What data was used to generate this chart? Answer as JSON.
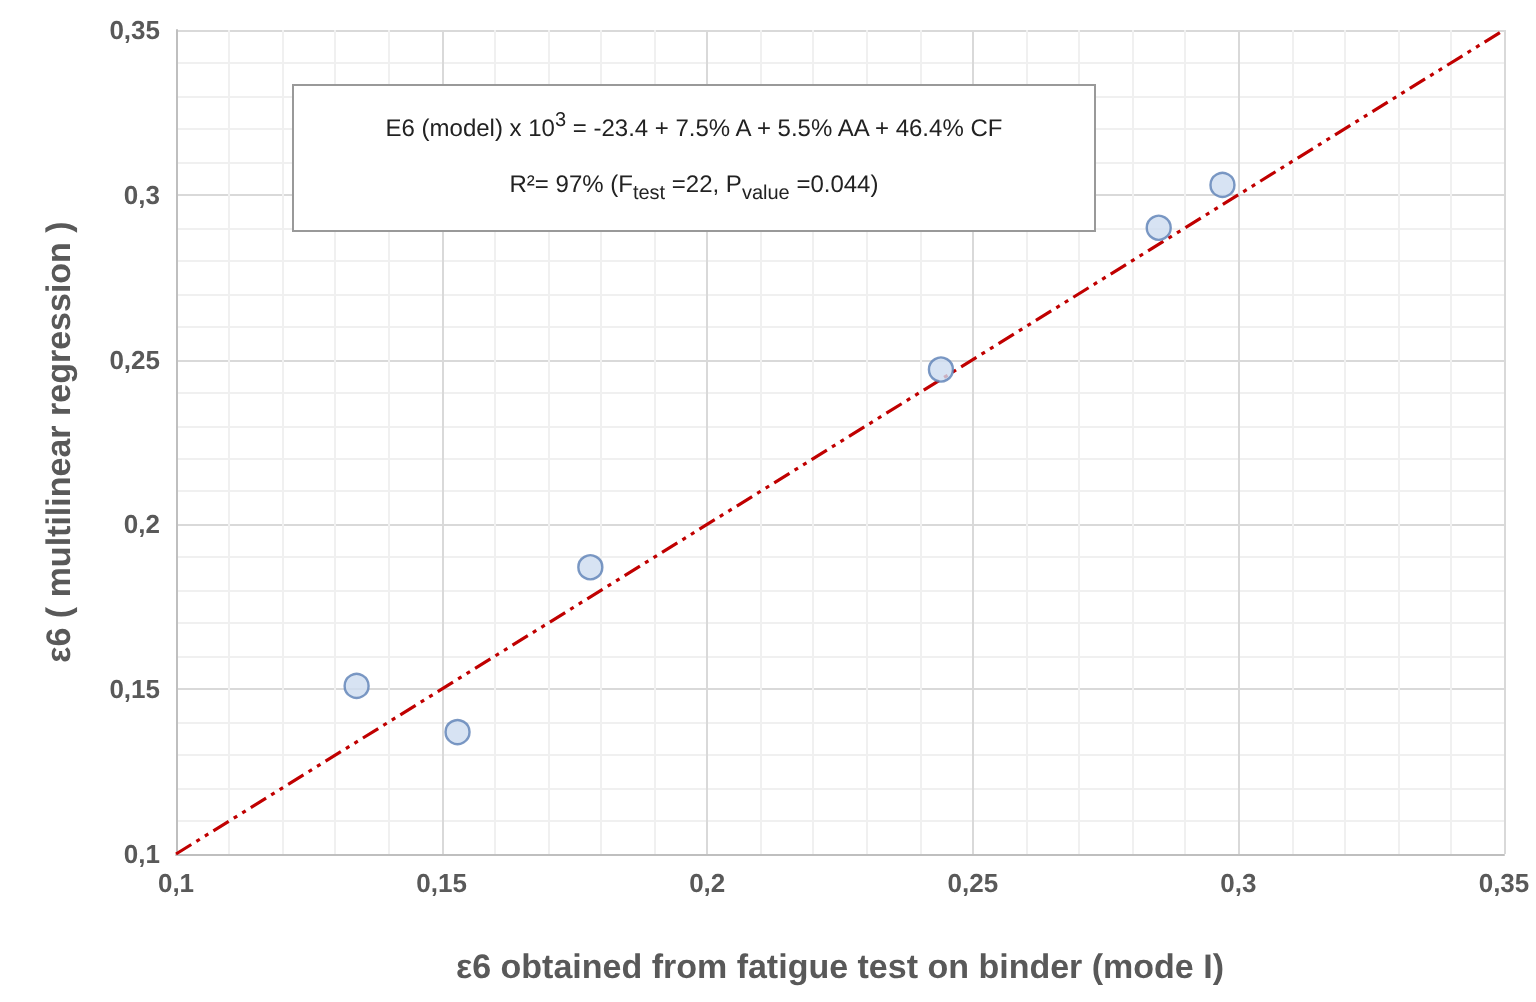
{
  "chart_data": {
    "type": "scatter",
    "xlabel": "ε6 obtained from fatigue test on binder (mode I)",
    "ylabel": "ε6 ( multilinear regression )",
    "annotations": [
      "E6 (model) x 10$^{3}$ = -23.4 + 7.5% A + 5.5% AA + 46.4% CF",
      "R²= 97% (F$_{test}$ =22, P$_{value}$ =0.044)"
    ],
    "series": [
      {
        "color": "#cddcf0",
        "x": [
          0.134,
          0.153,
          0.178,
          0.244,
          0.285,
          0.297
        ],
        "values": [
          0.151,
          0.137,
          0.187,
          0.247,
          0.29,
          0.303
        ],
        "marker": "circle"
      },
      {
        "type": "line",
        "color": "#c00000",
        "x": [
          0.1,
          0.35
        ],
        "values": [
          0.1,
          0.35
        ],
        "line_style": "dashed",
        "marker": "none"
      }
    ],
    "xlim": [
      0.1,
      0.35
    ],
    "ylim": [
      0.1,
      0.35
    ],
    "xticks": [
      {
        "value": 0.1,
        "label": "0,1"
      },
      {
        "value": 0.15,
        "label": "0,15"
      },
      {
        "value": 0.2,
        "label": "0,2"
      },
      {
        "value": 0.25,
        "label": "0,25"
      },
      {
        "value": 0.3,
        "label": "0,3"
      },
      {
        "value": 0.35,
        "label": "0,35"
      }
    ],
    "yticks": [
      {
        "value": 0.1,
        "label": "0,1"
      },
      {
        "value": 0.15,
        "label": "0,15"
      },
      {
        "value": 0.2,
        "label": "0,2"
      },
      {
        "value": 0.25,
        "label": "0,25"
      },
      {
        "value": 0.3,
        "label": "0,3"
      },
      {
        "value": 0.35,
        "label": "0,35"
      }
    ],
    "grid": true
  }
}
